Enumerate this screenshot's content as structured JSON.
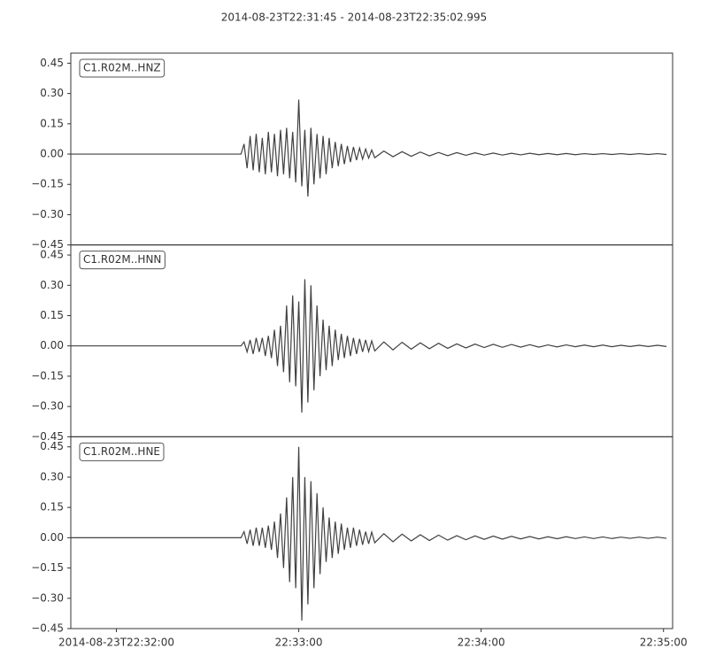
{
  "chart_data": [
    {
      "type": "line",
      "title": "2014-08-23T22:31:45  -  2014-08-23T22:35:02.995",
      "label": "C1.R02M..HNZ",
      "color": "#404040",
      "xlim": [
        0,
        197.995
      ],
      "ylim": [
        -0.45,
        0.5
      ],
      "yticks": [
        {
          "value": -0.45,
          "label": "−0.45"
        },
        {
          "value": -0.3,
          "label": "−0.30"
        },
        {
          "value": -0.15,
          "label": "−0.15"
        },
        {
          "value": 0,
          "label": "0.00"
        },
        0.15,
        {
          "value": 0.3,
          "label": "0.30"
        },
        0.45
      ],
      "x": [
        0,
        56,
        57,
        58,
        59,
        60,
        61,
        62,
        63,
        64,
        65,
        66,
        67,
        68,
        69,
        70,
        71,
        72,
        73,
        74,
        75,
        76,
        77,
        78,
        79,
        80,
        81,
        82,
        83,
        84,
        85,
        86,
        87,
        88,
        89,
        90,
        91,
        92,
        93,
        94,
        95,
        96,
        97,
        98,
        99,
        100,
        103,
        106,
        109,
        112,
        115,
        118,
        121,
        124,
        127,
        130,
        133,
        136,
        139,
        142,
        145,
        148,
        151,
        154,
        157,
        160,
        163,
        166,
        169,
        172,
        175,
        178,
        181,
        184,
        187,
        190,
        193,
        196
      ],
      "values": [
        0,
        0,
        0.05,
        -0.07,
        0.09,
        -0.08,
        0.1,
        -0.09,
        0.08,
        -0.1,
        0.11,
        -0.09,
        0.1,
        -0.11,
        0.12,
        -0.1,
        0.13,
        -0.12,
        0.11,
        -0.14,
        0.27,
        -0.16,
        0.12,
        -0.21,
        0.13,
        -0.15,
        0.1,
        -0.12,
        0.09,
        -0.1,
        0.08,
        -0.07,
        0.06,
        -0.06,
        0.05,
        -0.05,
        0.04,
        -0.04,
        0.035,
        -0.03,
        0.03,
        -0.025,
        0.025,
        -0.02,
        0.02,
        -0.018,
        0.015,
        -0.013,
        0.012,
        -0.011,
        0.01,
        -0.009,
        0.008,
        -0.008,
        0.007,
        -0.006,
        0.006,
        -0.005,
        0.005,
        -0.005,
        0.004,
        -0.004,
        0.004,
        -0.003,
        0.003,
        -0.003,
        0.003,
        -0.003,
        0.002,
        -0.002,
        0.002,
        -0.002,
        0.002,
        -0.002,
        0.002,
        -0.002,
        0.002,
        -0.002
      ]
    },
    {
      "type": "line",
      "label": "C1.R02M..HNN",
      "color": "#404040",
      "xlim": [
        0,
        197.995
      ],
      "ylim": [
        -0.45,
        0.5
      ],
      "yticks": [
        {
          "value": -0.45,
          "label": "−0.45"
        },
        {
          "value": -0.3,
          "label": "−0.30"
        },
        {
          "value": -0.15,
          "label": "−0.15"
        },
        {
          "value": 0,
          "label": "0.00"
        },
        0.15,
        {
          "value": 0.3,
          "label": "0.30"
        },
        0.45
      ],
      "x": [
        0,
        56,
        57,
        58,
        59,
        60,
        61,
        62,
        63,
        64,
        65,
        66,
        67,
        68,
        69,
        70,
        71,
        72,
        73,
        74,
        75,
        76,
        77,
        78,
        79,
        80,
        81,
        82,
        83,
        84,
        85,
        86,
        87,
        88,
        89,
        90,
        91,
        92,
        93,
        94,
        95,
        96,
        97,
        98,
        99,
        100,
        103,
        106,
        109,
        112,
        115,
        118,
        121,
        124,
        127,
        130,
        133,
        136,
        139,
        142,
        145,
        148,
        151,
        154,
        157,
        160,
        163,
        166,
        169,
        172,
        175,
        178,
        181,
        184,
        187,
        190,
        193,
        196
      ],
      "values": [
        0,
        0,
        0.02,
        -0.03,
        0.03,
        -0.04,
        0.04,
        -0.03,
        0.04,
        -0.05,
        0.05,
        -0.06,
        0.08,
        -0.1,
        0.1,
        -0.13,
        0.2,
        -0.18,
        0.25,
        -0.2,
        0.22,
        -0.33,
        0.33,
        -0.28,
        0.3,
        -0.22,
        0.2,
        -0.15,
        0.13,
        -0.12,
        0.1,
        -0.1,
        0.08,
        -0.07,
        0.06,
        -0.06,
        0.05,
        -0.05,
        0.04,
        -0.04,
        0.035,
        -0.03,
        0.03,
        -0.028,
        0.025,
        -0.025,
        0.02,
        -0.02,
        0.018,
        -0.016,
        0.015,
        -0.014,
        0.013,
        -0.012,
        0.01,
        -0.01,
        0.009,
        -0.008,
        0.008,
        -0.007,
        0.007,
        -0.006,
        0.006,
        -0.006,
        0.005,
        -0.005,
        0.005,
        -0.004,
        0.004,
        -0.004,
        0.004,
        -0.004,
        0.003,
        -0.003,
        0.003,
        -0.003,
        0.003,
        -0.003
      ]
    },
    {
      "type": "line",
      "label": "C1.R02M..HNE",
      "color": "#404040",
      "xlim": [
        0,
        197.995
      ],
      "ylim": [
        -0.45,
        0.5
      ],
      "yticks": [
        {
          "value": -0.45,
          "label": "−0.45"
        },
        {
          "value": -0.3,
          "label": "−0.30"
        },
        {
          "value": -0.15,
          "label": "−0.15"
        },
        {
          "value": 0,
          "label": "0.00"
        },
        0.15,
        {
          "value": 0.3,
          "label": "0.30"
        },
        0.45
      ],
      "xticks": [
        {
          "value": 15,
          "label": "2014-08-23T22:32:00"
        },
        {
          "value": 75,
          "label": "22:33:00"
        },
        {
          "value": 135,
          "label": "22:34:00"
        },
        {
          "value": 195,
          "label": "22:35:00"
        }
      ],
      "x": [
        0,
        56,
        57,
        58,
        59,
        60,
        61,
        62,
        63,
        64,
        65,
        66,
        67,
        68,
        69,
        70,
        71,
        72,
        73,
        74,
        75,
        76,
        77,
        78,
        79,
        80,
        81,
        82,
        83,
        84,
        85,
        86,
        87,
        88,
        89,
        90,
        91,
        92,
        93,
        94,
        95,
        96,
        97,
        98,
        99,
        100,
        103,
        106,
        109,
        112,
        115,
        118,
        121,
        124,
        127,
        130,
        133,
        136,
        139,
        142,
        145,
        148,
        151,
        154,
        157,
        160,
        163,
        166,
        169,
        172,
        175,
        178,
        181,
        184,
        187,
        190,
        193,
        196
      ],
      "values": [
        0,
        0,
        0.03,
        -0.03,
        0.04,
        -0.04,
        0.05,
        -0.04,
        0.05,
        -0.05,
        0.06,
        -0.06,
        0.08,
        -0.1,
        0.12,
        -0.15,
        0.2,
        -0.22,
        0.3,
        -0.25,
        0.45,
        -0.41,
        0.3,
        -0.33,
        0.28,
        -0.25,
        0.22,
        -0.18,
        0.15,
        -0.12,
        0.1,
        -0.1,
        0.08,
        -0.08,
        0.07,
        -0.06,
        0.05,
        -0.05,
        0.05,
        -0.04,
        0.04,
        -0.035,
        0.03,
        -0.03,
        0.028,
        -0.025,
        0.02,
        -0.02,
        0.018,
        -0.016,
        0.015,
        -0.014,
        0.013,
        -0.012,
        0.01,
        -0.01,
        0.009,
        -0.008,
        0.008,
        -0.007,
        0.007,
        -0.006,
        0.006,
        -0.006,
        0.005,
        -0.005,
        0.005,
        -0.004,
        0.004,
        -0.004,
        0.004,
        -0.004,
        0.003,
        -0.003,
        0.003,
        -0.003,
        0.003,
        -0.003
      ]
    }
  ]
}
